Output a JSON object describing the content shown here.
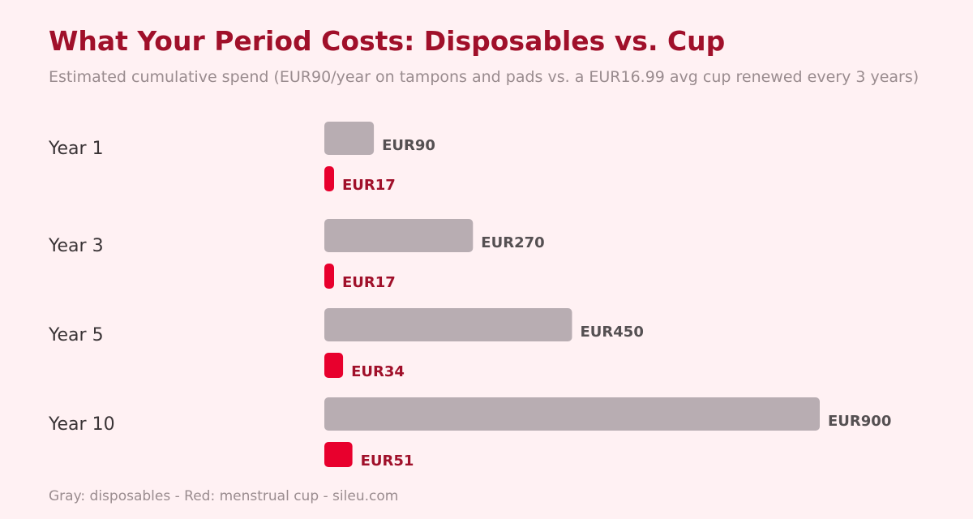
{
  "chart_data": {
    "type": "bar",
    "title": "What Your Period Costs: Disposables vs. Cup",
    "subtitle": "Estimated cumulative spend (EUR90/year on tampons and pads vs. a EUR16.99 avg cup renewed every 3 years)",
    "footnote": "Gray: disposables - Red: menstrual cup - sileu.com",
    "orientation": "horizontal",
    "categories": [
      "Year 1",
      "Year 3",
      "Year 5",
      "Year 10"
    ],
    "series": [
      {
        "values": [
          90,
          270,
          450,
          900
        ],
        "labels": [
          "EUR90",
          "EUR270",
          "EUR450",
          "EUR900"
        ],
        "color": "#b8adb2",
        "label_color": "#555052"
      },
      {
        "values": [
          17,
          17,
          34,
          51
        ],
        "labels": [
          "EUR17",
          "EUR17",
          "EUR34",
          "EUR51"
        ],
        "color": "#e8002d",
        "label_color": "#a0102a"
      }
    ],
    "xlim": [
      0,
      900
    ],
    "grid": false,
    "legend": "none"
  }
}
